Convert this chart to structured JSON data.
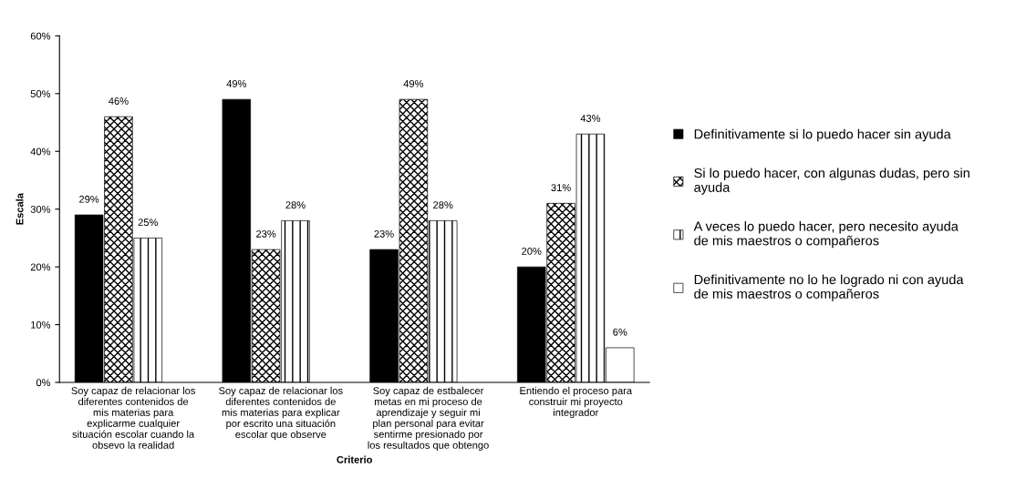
{
  "chart_data": {
    "type": "bar",
    "xlabel": "Criterio",
    "ylabel": "Escala",
    "categories": [
      "Soy capaz de relacionar los\ndiferentes contenidos de\nmis materias para\nexplicarme cualquier\nsituación escolar cuando la\nobsevo la realidad",
      "Soy capaz de relacionar los\ndiferentes contenidos de\nmis materias para explicar\npor escrito una situación\nescolar que observe",
      "Soy capaz de estbalecer\nmetas en mi proceso de\naprendizaje y seguir mi\nplan personal para evitar\nsentirme presionado por\nlos resultados que obtengo",
      "Entiendo el proceso para\nconstruir mi proyecto\nintegrador"
    ],
    "series": [
      {
        "name": "Definitivamente si lo puedo hacer sin ayuda",
        "color": "#000000",
        "values": [
          29,
          49,
          23,
          20
        ],
        "value_labels": [
          "29%",
          "49%",
          "23%",
          "20%"
        ]
      },
      {
        "name": "Si lo puedo hacer, con algunas dudas, pero sin\nayuda",
        "color": "#000000",
        "values": [
          46,
          23,
          49,
          31
        ],
        "value_labels": [
          "46%",
          "23%",
          "49%",
          "31%"
        ]
      },
      {
        "name": "A veces lo puedo hacer, pero necesito ayuda\nde mis maestros o compañeros",
        "color": "#000000",
        "values": [
          25,
          28,
          28,
          43
        ],
        "value_labels": [
          "25%",
          "28%",
          "28%",
          "43%"
        ]
      },
      {
        "name": "Definitivamente no lo he logrado ni con ayuda\nde mis maestros o compañeros",
        "color": "#000000",
        "values": [
          null,
          null,
          null,
          6
        ],
        "value_labels": [
          null,
          null,
          null,
          "6%"
        ]
      }
    ],
    "ylim": [
      0,
      60
    ],
    "yticks": [
      {
        "value": 0,
        "label": "0%"
      },
      {
        "value": 10,
        "label": "10%"
      },
      {
        "value": 20,
        "label": "20%"
      },
      {
        "value": 30,
        "label": "30%"
      },
      {
        "value": 40,
        "label": "40%"
      },
      {
        "value": 50,
        "label": "50%"
      },
      {
        "value": 60,
        "label": "60%"
      }
    ],
    "grid": false,
    "legend": "right"
  }
}
